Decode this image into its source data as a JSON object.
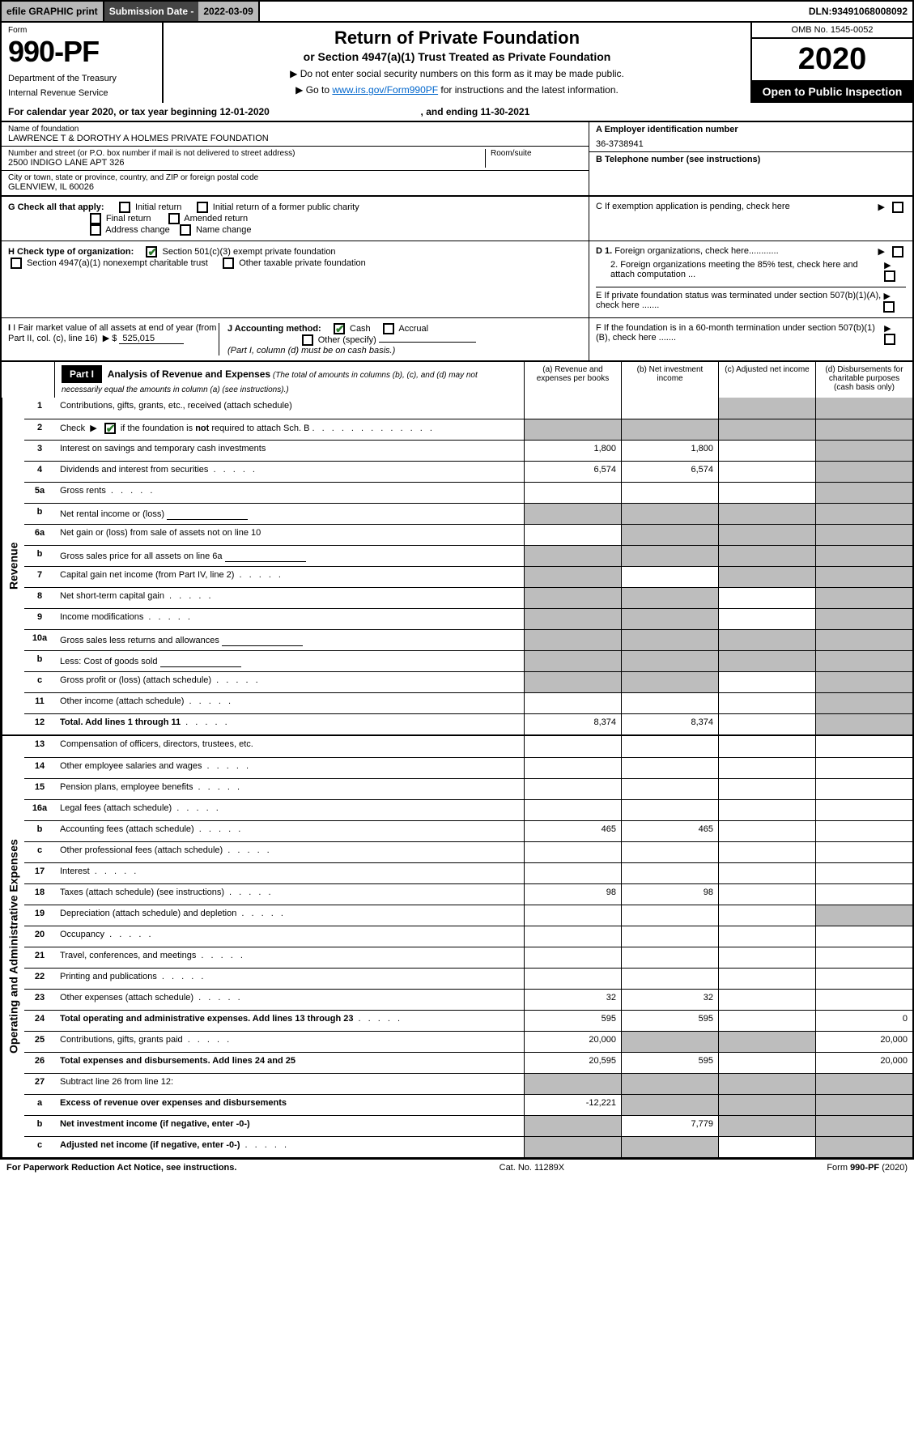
{
  "topbar": {
    "efile": "efile GRAPHIC print",
    "sub_date_label": "Submission Date - ",
    "sub_date": "2022-03-09",
    "dln_label": "DLN: ",
    "dln": "93491068008092"
  },
  "header": {
    "form_label": "Form",
    "form_name": "990-PF",
    "dept1": "Department of the Treasury",
    "dept2": "Internal Revenue Service",
    "title": "Return of Private Foundation",
    "subtitle": "or Section 4947(a)(1) Trust Treated as Private Foundation",
    "instr1": "▶ Do not enter social security numbers on this form as it may be made public.",
    "instr2_pre": "▶ Go to ",
    "instr2_link": "www.irs.gov/Form990PF",
    "instr2_post": " for instructions and the latest information.",
    "omb": "OMB No. 1545-0052",
    "year": "2020",
    "open": "Open to Public Inspection"
  },
  "calendar": {
    "text_pre": "For calendar year 2020, or tax year beginning ",
    "begin": "12-01-2020",
    "text_mid": " , and ending ",
    "end": "11-30-2021"
  },
  "entity": {
    "name_label": "Name of foundation",
    "name": "LAWRENCE T & DOROTHY A HOLMES PRIVATE FOUNDATION",
    "addr_label": "Number and street (or P.O. box number if mail is not delivered to street address)",
    "addr": "2500 INDIGO LANE APT 326",
    "room_label": "Room/suite",
    "city_label": "City or town, state or province, country, and ZIP or foreign postal code",
    "city": "GLENVIEW, IL  60026",
    "ein_label": "A Employer identification number",
    "ein": "36-3738941",
    "phone_label": "B Telephone number (see instructions)",
    "c_label": "C If exemption application is pending, check here",
    "d1": "D 1. Foreign organizations, check here............",
    "d2": "2. Foreign organizations meeting the 85% test, check here and attach computation ...",
    "e_label": "E  If private foundation status was terminated under section 507(b)(1)(A), check here .......",
    "f_label": "F  If the foundation is in a 60-month termination under section 507(b)(1)(B), check here .......",
    "g_label": "G Check all that apply:",
    "g_opts": [
      "Initial return",
      "Initial return of a former public charity",
      "Final return",
      "Amended return",
      "Address change",
      "Name change"
    ],
    "h_label": "H Check type of organization:",
    "h1": "Section 501(c)(3) exempt private foundation",
    "h2": "Section 4947(a)(1) nonexempt charitable trust",
    "h3": "Other taxable private foundation",
    "i_label": "I Fair market value of all assets at end of year (from Part II, col. (c), line 16)",
    "i_val": "525,015",
    "j_label": "J Accounting method:",
    "j_cash": "Cash",
    "j_accrual": "Accrual",
    "j_other": "Other (specify)",
    "j_note": "(Part I, column (d) must be on cash basis.)"
  },
  "part1": {
    "label": "Part I",
    "title": "Analysis of Revenue and Expenses",
    "note": " (The total of amounts in columns (b), (c), and (d) may not necessarily equal the amounts in column (a) (see instructions).)",
    "col_a": "(a) Revenue and expenses per books",
    "col_b": "(b) Net investment income",
    "col_c": "(c) Adjusted net income",
    "col_d": "(d) Disbursements for charitable purposes (cash basis only)"
  },
  "sides": {
    "revenue": "Revenue",
    "expenses": "Operating and Administrative Expenses"
  },
  "lines": [
    {
      "no": "1",
      "desc": "Contributions, gifts, grants, etc., received (attach schedule)",
      "a": "",
      "b": "",
      "c": "",
      "d": "",
      "cgrey": true,
      "dgrey": true
    },
    {
      "no": "2",
      "desc": "Check ▶ ☑ if the foundation is not required to attach Sch. B",
      "dotted": true,
      "a": "",
      "b": "",
      "c": "",
      "d": "",
      "agrey": true,
      "bgrey": true,
      "cgrey": true,
      "dgrey": true,
      "bold_not": true
    },
    {
      "no": "3",
      "desc": "Interest on savings and temporary cash investments",
      "a": "1,800",
      "b": "1,800",
      "c": "",
      "d": "",
      "dgrey": true
    },
    {
      "no": "4",
      "desc": "Dividends and interest from securities",
      "dotted": true,
      "a": "6,574",
      "b": "6,574",
      "c": "",
      "d": "",
      "dgrey": true
    },
    {
      "no": "5a",
      "desc": "Gross rents",
      "dotted": true,
      "a": "",
      "b": "",
      "c": "",
      "d": "",
      "dgrey": true
    },
    {
      "no": "b",
      "desc": "Net rental income or (loss)",
      "sub": true,
      "a": "",
      "b": "",
      "c": "",
      "d": "",
      "agrey": true,
      "bgrey": true,
      "cgrey": true,
      "dgrey": true
    },
    {
      "no": "6a",
      "desc": "Net gain or (loss) from sale of assets not on line 10",
      "a": "",
      "b": "",
      "c": "",
      "d": "",
      "bgrey": true,
      "cgrey": true,
      "dgrey": true
    },
    {
      "no": "b",
      "desc": "Gross sales price for all assets on line 6a",
      "sub": true,
      "a": "",
      "b": "",
      "c": "",
      "d": "",
      "agrey": true,
      "bgrey": true,
      "cgrey": true,
      "dgrey": true
    },
    {
      "no": "7",
      "desc": "Capital gain net income (from Part IV, line 2)",
      "dotted": true,
      "a": "",
      "b": "",
      "c": "",
      "d": "",
      "agrey": true,
      "cgrey": true,
      "dgrey": true
    },
    {
      "no": "8",
      "desc": "Net short-term capital gain",
      "dotted": true,
      "a": "",
      "b": "",
      "c": "",
      "d": "",
      "agrey": true,
      "bgrey": true,
      "dgrey": true
    },
    {
      "no": "9",
      "desc": "Income modifications",
      "dotted": true,
      "a": "",
      "b": "",
      "c": "",
      "d": "",
      "agrey": true,
      "bgrey": true,
      "dgrey": true
    },
    {
      "no": "10a",
      "desc": "Gross sales less returns and allowances",
      "sub": true,
      "a": "",
      "b": "",
      "c": "",
      "d": "",
      "agrey": true,
      "bgrey": true,
      "cgrey": true,
      "dgrey": true
    },
    {
      "no": "b",
      "desc": "Less: Cost of goods sold",
      "dotted": true,
      "sub": true,
      "a": "",
      "b": "",
      "c": "",
      "d": "",
      "agrey": true,
      "bgrey": true,
      "cgrey": true,
      "dgrey": true
    },
    {
      "no": "c",
      "desc": "Gross profit or (loss) (attach schedule)",
      "dotted": true,
      "a": "",
      "b": "",
      "c": "",
      "d": "",
      "agrey": true,
      "bgrey": true,
      "dgrey": true
    },
    {
      "no": "11",
      "desc": "Other income (attach schedule)",
      "dotted": true,
      "a": "",
      "b": "",
      "c": "",
      "d": "",
      "dgrey": true
    },
    {
      "no": "12",
      "desc": "Total. Add lines 1 through 11",
      "dotted": true,
      "bold": true,
      "a": "8,374",
      "b": "8,374",
      "c": "",
      "d": "",
      "dgrey": true
    },
    {
      "no": "13",
      "desc": "Compensation of officers, directors, trustees, etc.",
      "a": "",
      "b": "",
      "c": "",
      "d": ""
    },
    {
      "no": "14",
      "desc": "Other employee salaries and wages",
      "dotted": true,
      "a": "",
      "b": "",
      "c": "",
      "d": ""
    },
    {
      "no": "15",
      "desc": "Pension plans, employee benefits",
      "dotted": true,
      "a": "",
      "b": "",
      "c": "",
      "d": ""
    },
    {
      "no": "16a",
      "desc": "Legal fees (attach schedule)",
      "dotted": true,
      "a": "",
      "b": "",
      "c": "",
      "d": ""
    },
    {
      "no": "b",
      "desc": "Accounting fees (attach schedule)",
      "dotted": true,
      "a": "465",
      "b": "465",
      "c": "",
      "d": ""
    },
    {
      "no": "c",
      "desc": "Other professional fees (attach schedule)",
      "dotted": true,
      "a": "",
      "b": "",
      "c": "",
      "d": ""
    },
    {
      "no": "17",
      "desc": "Interest",
      "dotted": true,
      "a": "",
      "b": "",
      "c": "",
      "d": ""
    },
    {
      "no": "18",
      "desc": "Taxes (attach schedule) (see instructions)",
      "dotted": true,
      "a": "98",
      "b": "98",
      "c": "",
      "d": ""
    },
    {
      "no": "19",
      "desc": "Depreciation (attach schedule) and depletion",
      "dotted": true,
      "a": "",
      "b": "",
      "c": "",
      "d": "",
      "dgrey": true
    },
    {
      "no": "20",
      "desc": "Occupancy",
      "dotted": true,
      "a": "",
      "b": "",
      "c": "",
      "d": ""
    },
    {
      "no": "21",
      "desc": "Travel, conferences, and meetings",
      "dotted": true,
      "a": "",
      "b": "",
      "c": "",
      "d": ""
    },
    {
      "no": "22",
      "desc": "Printing and publications",
      "dotted": true,
      "a": "",
      "b": "",
      "c": "",
      "d": ""
    },
    {
      "no": "23",
      "desc": "Other expenses (attach schedule)",
      "dotted": true,
      "a": "32",
      "b": "32",
      "c": "",
      "d": ""
    },
    {
      "no": "24",
      "desc": "Total operating and administrative expenses. Add lines 13 through 23",
      "dotted": true,
      "bold": true,
      "a": "595",
      "b": "595",
      "c": "",
      "d": "0"
    },
    {
      "no": "25",
      "desc": "Contributions, gifts, grants paid",
      "dotted": true,
      "a": "20,000",
      "b": "",
      "c": "",
      "d": "20,000",
      "bgrey": true,
      "cgrey": true
    },
    {
      "no": "26",
      "desc": "Total expenses and disbursements. Add lines 24 and 25",
      "bold": true,
      "a": "20,595",
      "b": "595",
      "c": "",
      "d": "20,000"
    },
    {
      "no": "27",
      "desc": "Subtract line 26 from line 12:",
      "a": "",
      "b": "",
      "c": "",
      "d": "",
      "agrey": true,
      "bgrey": true,
      "cgrey": true,
      "dgrey": true
    },
    {
      "no": "a",
      "desc": "Excess of revenue over expenses and disbursements",
      "bold": true,
      "a": "-12,221",
      "b": "",
      "c": "",
      "d": "",
      "bgrey": true,
      "cgrey": true,
      "dgrey": true
    },
    {
      "no": "b",
      "desc": "Net investment income (if negative, enter -0-)",
      "bold": true,
      "a": "",
      "b": "7,779",
      "c": "",
      "d": "",
      "agrey": true,
      "cgrey": true,
      "dgrey": true
    },
    {
      "no": "c",
      "desc": "Adjusted net income (if negative, enter -0-)",
      "dotted": true,
      "bold": true,
      "a": "",
      "b": "",
      "c": "",
      "d": "",
      "agrey": true,
      "bgrey": true,
      "dgrey": true
    }
  ],
  "footer": {
    "left": "For Paperwork Reduction Act Notice, see instructions.",
    "mid": "Cat. No. 11289X",
    "right": "Form 990-PF (2020)"
  }
}
